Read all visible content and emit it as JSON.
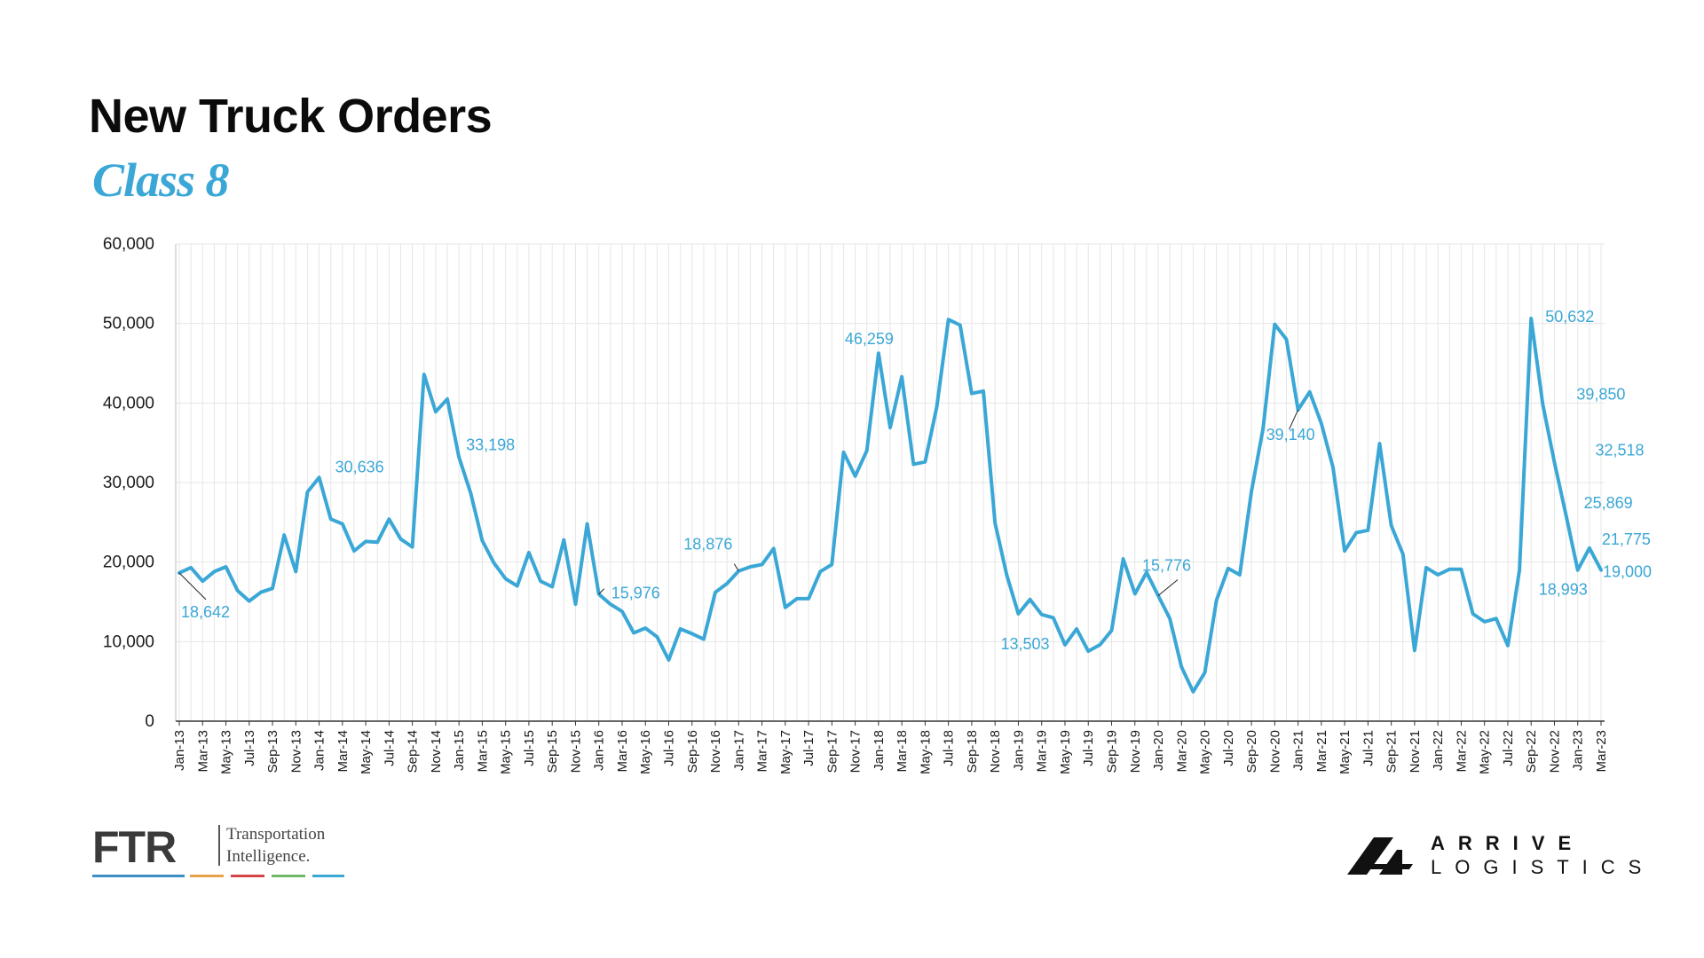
{
  "title": "New Truck Orders",
  "subtitle": "Class 8",
  "colors": {
    "line": "#3ba7d6",
    "title": "#0b0b0b",
    "subtitle": "#3ba7d6",
    "grid": "#e6e6e6"
  },
  "chart_data": {
    "type": "line",
    "title": "New Truck Orders",
    "subtitle": "Class 8",
    "xlabel": "",
    "ylabel": "",
    "ylim": [
      0,
      60000
    ],
    "yticks": [
      0,
      10000,
      20000,
      30000,
      40000,
      50000,
      60000
    ],
    "ytick_labels": [
      "0",
      "10,000",
      "20,000",
      "30,000",
      "40,000",
      "50,000",
      "60,000"
    ],
    "grid": true,
    "legend": "none",
    "x_start": "Jan-13",
    "x_tick_labels": [
      "Jan-13",
      "Mar-13",
      "May-13",
      "Jul-13",
      "Sep-13",
      "Nov-13",
      "Jan-14",
      "Mar-14",
      "May-14",
      "Jul-14",
      "Sep-14",
      "Nov-14",
      "Jan-15",
      "Mar-15",
      "May-15",
      "Jul-15",
      "Sep-15",
      "Nov-15",
      "Jan-16",
      "Mar-16",
      "May-16",
      "Jul-16",
      "Sep-16",
      "Nov-16",
      "Jan-17",
      "Mar-17",
      "May-17",
      "Jul-17",
      "Sep-17",
      "Nov-17",
      "Jan-18",
      "Mar-18",
      "May-18",
      "Jul-18",
      "Sep-18",
      "Nov-18",
      "Jan-19",
      "Mar-19",
      "May-19",
      "Jul-19",
      "Sep-19",
      "Nov-19",
      "Jan-20",
      "Mar-20",
      "May-20",
      "Jul-20",
      "Sep-20",
      "Nov-20",
      "Jan-21",
      "Mar-21",
      "May-21",
      "Jul-21",
      "Sep-21",
      "Nov-21",
      "Jan-22",
      "Mar-22",
      "May-22",
      "Jul-22",
      "Sep-22",
      "Nov-22",
      "Jan-23",
      "Mar-23"
    ],
    "series": [
      {
        "name": "",
        "values": [
          18642,
          19300,
          17600,
          18800,
          19400,
          16400,
          15100,
          16200,
          16700,
          23400,
          18800,
          28800,
          30636,
          25400,
          24800,
          21400,
          22600,
          22500,
          25400,
          22900,
          21900,
          43600,
          38900,
          40500,
          33198,
          28700,
          22700,
          19900,
          17900,
          17000,
          21200,
          17600,
          16900,
          22800,
          14700,
          24800,
          15976,
          14700,
          13800,
          11100,
          11700,
          10600,
          7700,
          11600,
          11000,
          10300,
          16200,
          17300,
          18876,
          19400,
          19700,
          21700,
          14300,
          15400,
          15400,
          18800,
          19700,
          33800,
          30800,
          34000,
          46259,
          36900,
          43300,
          32300,
          32600,
          39500,
          50500,
          49800,
          41200,
          41500,
          24900,
          18400,
          13503,
          15300,
          13400,
          13000,
          9600,
          11600,
          8800,
          9600,
          11400,
          20400,
          16000,
          18700,
          15776,
          12900,
          6800,
          3700,
          6100,
          15200,
          19200,
          18400,
          28900,
          36800,
          49900,
          48000,
          39140,
          41400,
          37400,
          31900,
          21400,
          23700,
          24000,
          34900,
          24600,
          21000,
          8900,
          19300,
          18400,
          19100,
          19100,
          13500,
          12500,
          12900,
          9500,
          19000,
          50632,
          39850,
          32518,
          25869,
          18993,
          21775,
          19000
        ]
      }
    ],
    "data_labels": [
      {
        "index": 0,
        "text": "18,642"
      },
      {
        "index": 12,
        "text": "30,636"
      },
      {
        "index": 24,
        "text": "33,198"
      },
      {
        "index": 36,
        "text": "15,976"
      },
      {
        "index": 48,
        "text": "18,876"
      },
      {
        "index": 60,
        "text": "46,259"
      },
      {
        "index": 72,
        "text": "13,503"
      },
      {
        "index": 84,
        "text": "15,776"
      },
      {
        "index": 96,
        "text": "39,140"
      },
      {
        "index": 116,
        "text": "50,632"
      },
      {
        "index": 117,
        "text": "39,850"
      },
      {
        "index": 118,
        "text": "32,518"
      },
      {
        "index": 119,
        "text": "25,869"
      },
      {
        "index": 120,
        "text": "18,993"
      },
      {
        "index": 121,
        "text": "21,775"
      },
      {
        "index": 122,
        "text": "19,000"
      }
    ]
  },
  "footer": {
    "ftr_logo_text": "FTR",
    "ftr_tagline_line1": "Transportation",
    "ftr_tagline_line2": "Intelligence.",
    "ftr_bar_colors": [
      "#3b8fc4",
      "#e8a24a",
      "#d64545",
      "#6fb86a",
      "#3ba7d6"
    ],
    "arrive_word": "ARRIVE",
    "logistics_word": "LOGISTICS"
  }
}
